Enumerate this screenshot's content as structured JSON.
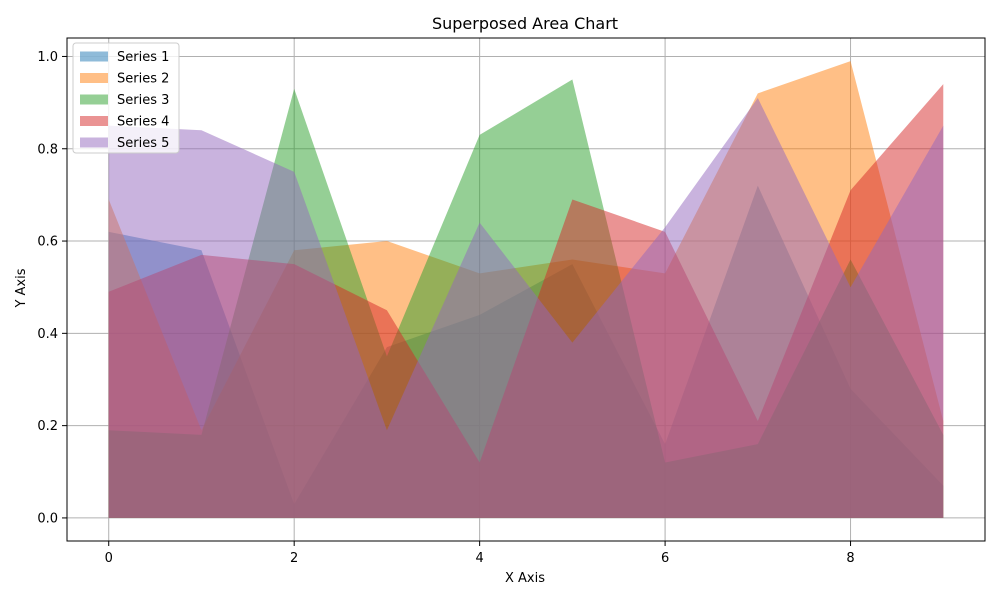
{
  "chart_data": {
    "type": "area",
    "title": "Superposed Area Chart",
    "xlabel": "X Axis",
    "ylabel": "Y Axis",
    "xlim": [
      -0.45,
      9.45
    ],
    "ylim": [
      -0.05,
      1.04
    ],
    "xticks": [
      0,
      2,
      4,
      6,
      8
    ],
    "yticks": [
      0.0,
      0.2,
      0.4,
      0.6,
      0.8,
      1.0
    ],
    "grid": true,
    "legend_position": "top-left",
    "fill_alpha": 0.5,
    "x": [
      0,
      1,
      2,
      3,
      4,
      5,
      6,
      7,
      8,
      9
    ],
    "series": [
      {
        "name": "Series 1",
        "color": "#1f77b4",
        "values": [
          0.62,
          0.58,
          0.03,
          0.37,
          0.44,
          0.55,
          0.16,
          0.72,
          0.28,
          0.07
        ]
      },
      {
        "name": "Series 2",
        "color": "#ff7f0e",
        "values": [
          0.69,
          0.19,
          0.58,
          0.6,
          0.53,
          0.56,
          0.53,
          0.92,
          0.99,
          0.21
        ]
      },
      {
        "name": "Series 3",
        "color": "#2ca02c",
        "values": [
          0.19,
          0.18,
          0.93,
          0.35,
          0.83,
          0.95,
          0.12,
          0.16,
          0.56,
          0.18
        ]
      },
      {
        "name": "Series 4",
        "color": "#d62728",
        "values": [
          0.49,
          0.57,
          0.55,
          0.45,
          0.12,
          0.69,
          0.62,
          0.21,
          0.71,
          0.94
        ]
      },
      {
        "name": "Series 5",
        "color": "#9467bd",
        "values": [
          0.85,
          0.84,
          0.75,
          0.19,
          0.64,
          0.38,
          0.63,
          0.91,
          0.5,
          0.85
        ]
      }
    ]
  },
  "colors": {
    "grid": "#b0b0b0",
    "axis": "#000000",
    "legend_border": "#cccccc"
  }
}
